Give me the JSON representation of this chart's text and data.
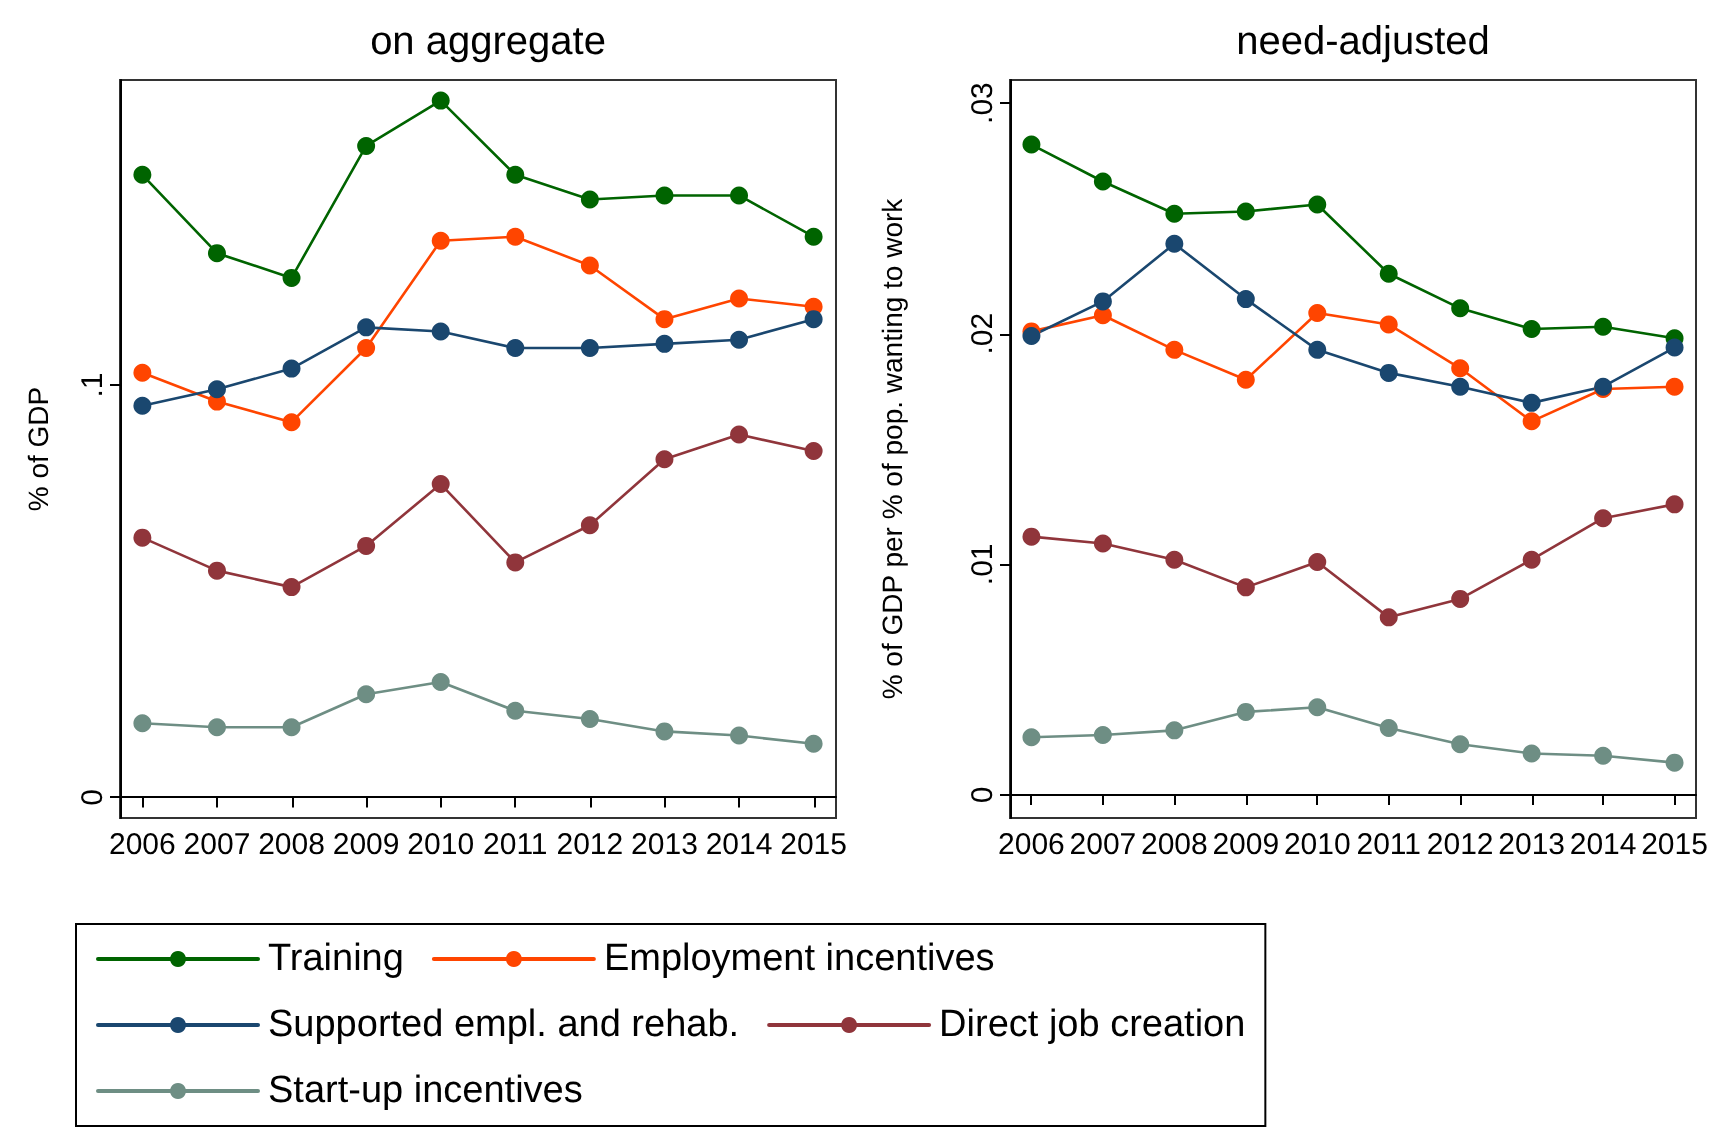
{
  "chart_data": [
    {
      "type": "line",
      "title": "on aggregate",
      "ylabel": "% of GDP",
      "x": [
        2006,
        2007,
        2008,
        2009,
        2010,
        2011,
        2012,
        2013,
        2014,
        2015
      ],
      "xlim": [
        2005.7,
        2015.3
      ],
      "xticks": [
        2006,
        2007,
        2008,
        2009,
        2010,
        2011,
        2012,
        2013,
        2014,
        2015
      ],
      "ylim": [
        -0.005,
        0.174
      ],
      "yticks": [
        {
          "value": 0,
          "label": "0"
        },
        {
          "value": 0.1,
          "label": ".1"
        }
      ],
      "marker": "circle",
      "legend": "bottom",
      "series": [
        {
          "name": "Training",
          "color": "#006400",
          "values": [
            0.151,
            0.132,
            0.126,
            0.158,
            0.169,
            0.151,
            0.145,
            0.146,
            0.146,
            0.136
          ]
        },
        {
          "name": "Employment incentives",
          "color": "#ff4500",
          "values": [
            0.103,
            0.096,
            0.091,
            0.109,
            0.135,
            0.136,
            0.129,
            0.116,
            0.121,
            0.119
          ]
        },
        {
          "name": "Supported empl. and rehab.",
          "color": "#1a476f",
          "values": [
            0.095,
            0.099,
            0.104,
            0.114,
            0.113,
            0.109,
            0.109,
            0.11,
            0.111,
            0.116
          ]
        },
        {
          "name": "Direct job creation",
          "color": "#90353b",
          "values": [
            0.063,
            0.055,
            0.051,
            0.061,
            0.076,
            0.057,
            0.066,
            0.082,
            0.088,
            0.084
          ]
        },
        {
          "name": "Start-up incentives",
          "color": "#6e8e84",
          "values": [
            0.018,
            0.017,
            0.017,
            0.025,
            0.028,
            0.021,
            0.019,
            0.016,
            0.015,
            0.013
          ]
        }
      ]
    },
    {
      "type": "line",
      "title": "need-adjusted",
      "ylabel": "% of GDP per % of pop. wanting to work",
      "x": [
        2006,
        2007,
        2008,
        2009,
        2010,
        2011,
        2012,
        2013,
        2014,
        2015
      ],
      "xlim": [
        2005.7,
        2015.3
      ],
      "xticks": [
        2006,
        2007,
        2008,
        2009,
        2010,
        2011,
        2012,
        2013,
        2014,
        2015
      ],
      "ylim": [
        -0.001,
        0.031
      ],
      "yticks": [
        {
          "value": 0,
          "label": "0"
        },
        {
          "value": 0.01,
          "label": ".01"
        },
        {
          "value": 0.02,
          "label": ".02"
        },
        {
          "value": 0.03,
          "label": ".03"
        }
      ],
      "marker": "circle",
      "series": [
        {
          "color": "#006400",
          "values": [
            0.0282,
            0.0266,
            0.0252,
            0.0253,
            0.0256,
            0.0226,
            0.0211,
            0.0202,
            0.0203,
            0.0198
          ]
        },
        {
          "color": "#ff4500",
          "values": [
            0.0201,
            0.0208,
            0.0193,
            0.018,
            0.0209,
            0.0204,
            0.0185,
            0.0162,
            0.0176,
            0.0177
          ]
        },
        {
          "color": "#1a476f",
          "values": [
            0.0199,
            0.0214,
            0.0239,
            0.0215,
            0.0193,
            0.0183,
            0.0177,
            0.017,
            0.0177,
            0.0194
          ]
        },
        {
          "color": "#90353b",
          "values": [
            0.0112,
            0.0109,
            0.0102,
            0.009,
            0.0101,
            0.0077,
            0.0085,
            0.0102,
            0.012,
            0.0126
          ]
        },
        {
          "color": "#6e8e84",
          "values": [
            0.0025,
            0.0026,
            0.0028,
            0.0036,
            0.0038,
            0.0029,
            0.0022,
            0.0018,
            0.0017,
            0.0014
          ]
        }
      ]
    }
  ]
}
